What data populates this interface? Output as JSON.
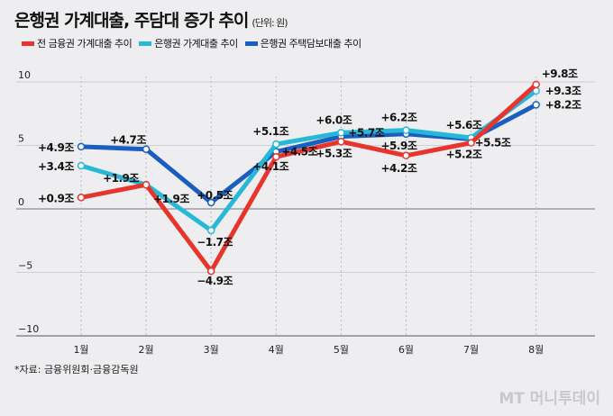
{
  "title": "은행권 가계대출, 주담대 증가 추이",
  "unit": "(단위: 원)",
  "source": "*자료: 금융위원회·금융감독원",
  "logo": "MT 머니투데이",
  "chart_data": {
    "type": "line",
    "categories": [
      "1월",
      "2월",
      "3월",
      "4월",
      "5월",
      "6월",
      "7월",
      "8월"
    ],
    "ylim": [
      -10,
      10
    ],
    "yticks": [
      10,
      5,
      0,
      -5,
      -10
    ],
    "value_suffix": "조",
    "legend_position": "top-left",
    "series": [
      {
        "name": "전 금융권 가계대출 추이",
        "color": "#e8352b",
        "values": [
          0.9,
          1.9,
          -4.9,
          4.1,
          5.3,
          4.2,
          5.2,
          9.8
        ]
      },
      {
        "name": "은행권 가계대출 추이",
        "color": "#27b8d8",
        "values": [
          3.4,
          1.9,
          -1.7,
          5.1,
          6.0,
          6.2,
          5.6,
          9.3
        ]
      },
      {
        "name": "은행권 주택담보대출 추이",
        "color": "#1a5fc0",
        "values": [
          4.9,
          4.7,
          0.5,
          4.5,
          5.7,
          5.9,
          5.5,
          8.2
        ]
      }
    ]
  }
}
